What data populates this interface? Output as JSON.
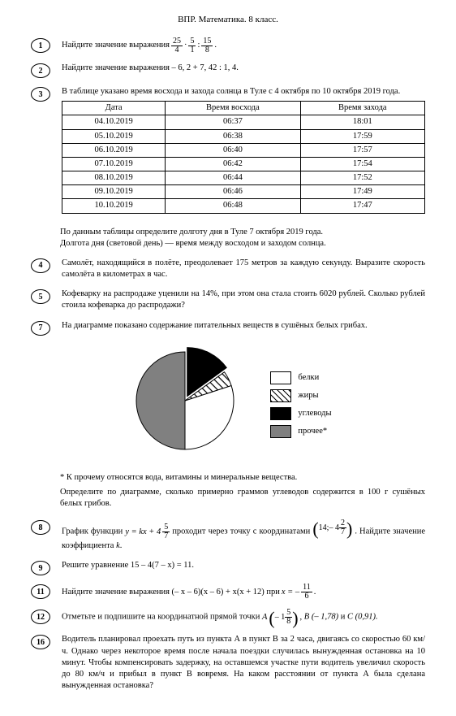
{
  "title": "ВПР. Математика. 8 класс.",
  "tasks": {
    "t1": {
      "num": "1",
      "textA": "Найдите значение выражения ",
      "f1n": "25",
      "f1d": "4",
      "f2n": "5",
      "f2d": "1",
      "f3n": "15",
      "f3d": "8",
      "dot": ".",
      "sep1": "·",
      "sep2": ":"
    },
    "t2": {
      "num": "2",
      "text": "Найдите значение выражения  – 6, 2 + 7, 42 : 1, 4."
    },
    "t3": {
      "num": "3",
      "intro": "В таблице указано время восхода и захода солнца в Туле с 4 октября по 10 октября 2019 года.",
      "headers": [
        "Дата",
        "Время восхода",
        "Время захода"
      ],
      "rows": [
        [
          "04.10.2019",
          "06:37",
          "18:01"
        ],
        [
          "05.10.2019",
          "06:38",
          "17:59"
        ],
        [
          "06.10.2019",
          "06:40",
          "17:57"
        ],
        [
          "07.10.2019",
          "06:42",
          "17:54"
        ],
        [
          "08.10.2019",
          "06:44",
          "17:52"
        ],
        [
          "09.10.2019",
          "06:46",
          "17:49"
        ],
        [
          "10.10.2019",
          "06:48",
          "17:47"
        ]
      ],
      "after1": "По данным таблицы определите долготу дня в Туле 7 октября 2019 года.",
      "after2": "Долгота дня (световой день) — время между восходом и заходом солнца."
    },
    "t4": {
      "num": "4",
      "text": "Самолёт, находящийся в полёте, преодолевает 175 метров за каждую секунду. Выразите скорость самолёта в километрах в час."
    },
    "t5": {
      "num": "5",
      "text": "Кофеварку на распродаже уценили на 14%, при этом она стала стоить 6020 рублей. Сколько рублей стоила кофеварка до распродажи?"
    },
    "t7": {
      "num": "7",
      "text": "На диаграмме показано содержание питательных веществ в сушёных белых грибах.",
      "legend": [
        "белки",
        "жиры",
        "углеводы",
        "прочее*"
      ],
      "note": "* К прочему относятся вода, витамины и минеральные вещества.",
      "q": "Определите по диаграмме, сколько примерно граммов углеводов содержится в 100 г сушёных белых грибов.",
      "pie": {
        "slices": [
          {
            "label": "прочее",
            "value": 50,
            "color": "#808080"
          },
          {
            "label": "белки",
            "value": 30,
            "color": "#ffffff"
          },
          {
            "label": "жиры",
            "value": 5,
            "color": "hatch"
          },
          {
            "label": "углеводы",
            "value": 15,
            "color": "#000000"
          }
        ],
        "border": "#000000"
      }
    },
    "t8": {
      "num": "8",
      "textA": "График функции  ",
      "textB": "  проходит через точку с координатами  ",
      "textC": ". Найдите значение коэффициента ",
      "textD": ".",
      "eqA": "y = kx + 4",
      "eqFn": "5",
      "eqFd": "7",
      "pt_x": "14;",
      "pt_yInt": " – 4",
      "pt_yFn": "2",
      "pt_yFd": "7",
      "kvar": "k"
    },
    "t9": {
      "num": "9",
      "text": "Решите уравнение   15 – 4(7 – x) = 11."
    },
    "t11": {
      "num": "11",
      "textA": "Найдите значение выражения   (– x – 6)(x – 6) + x(x + 12)  при  ",
      "var": "x = –",
      "fn": "11",
      "fd": "6",
      "dot": "."
    },
    "t12": {
      "num": "12",
      "textA": "Отметьте и подпишите на координатной прямой точки  ",
      "A": "A",
      "An": "5",
      "Ad": "8",
      "Aint": "– 1",
      "B": "B (– 1,78)",
      "and": "  и  ",
      "C": "C (0,91)."
    },
    "t16": {
      "num": "16",
      "text": "Водитель планировал проехать путь из пункта А в пункт В за 2 часа, двигаясь со скоростью 60 км/ч. Однако через некоторое время после начала поездки случилась вынужденная остановка на 10 минут. Чтобы компенсировать задержку, на оставшемся участке пути водитель увеличил скорость до 80 км/ч и прибыл в пункт В вовремя. На каком расстоянии от пункта А была сделана вынужденная остановка?"
    }
  }
}
